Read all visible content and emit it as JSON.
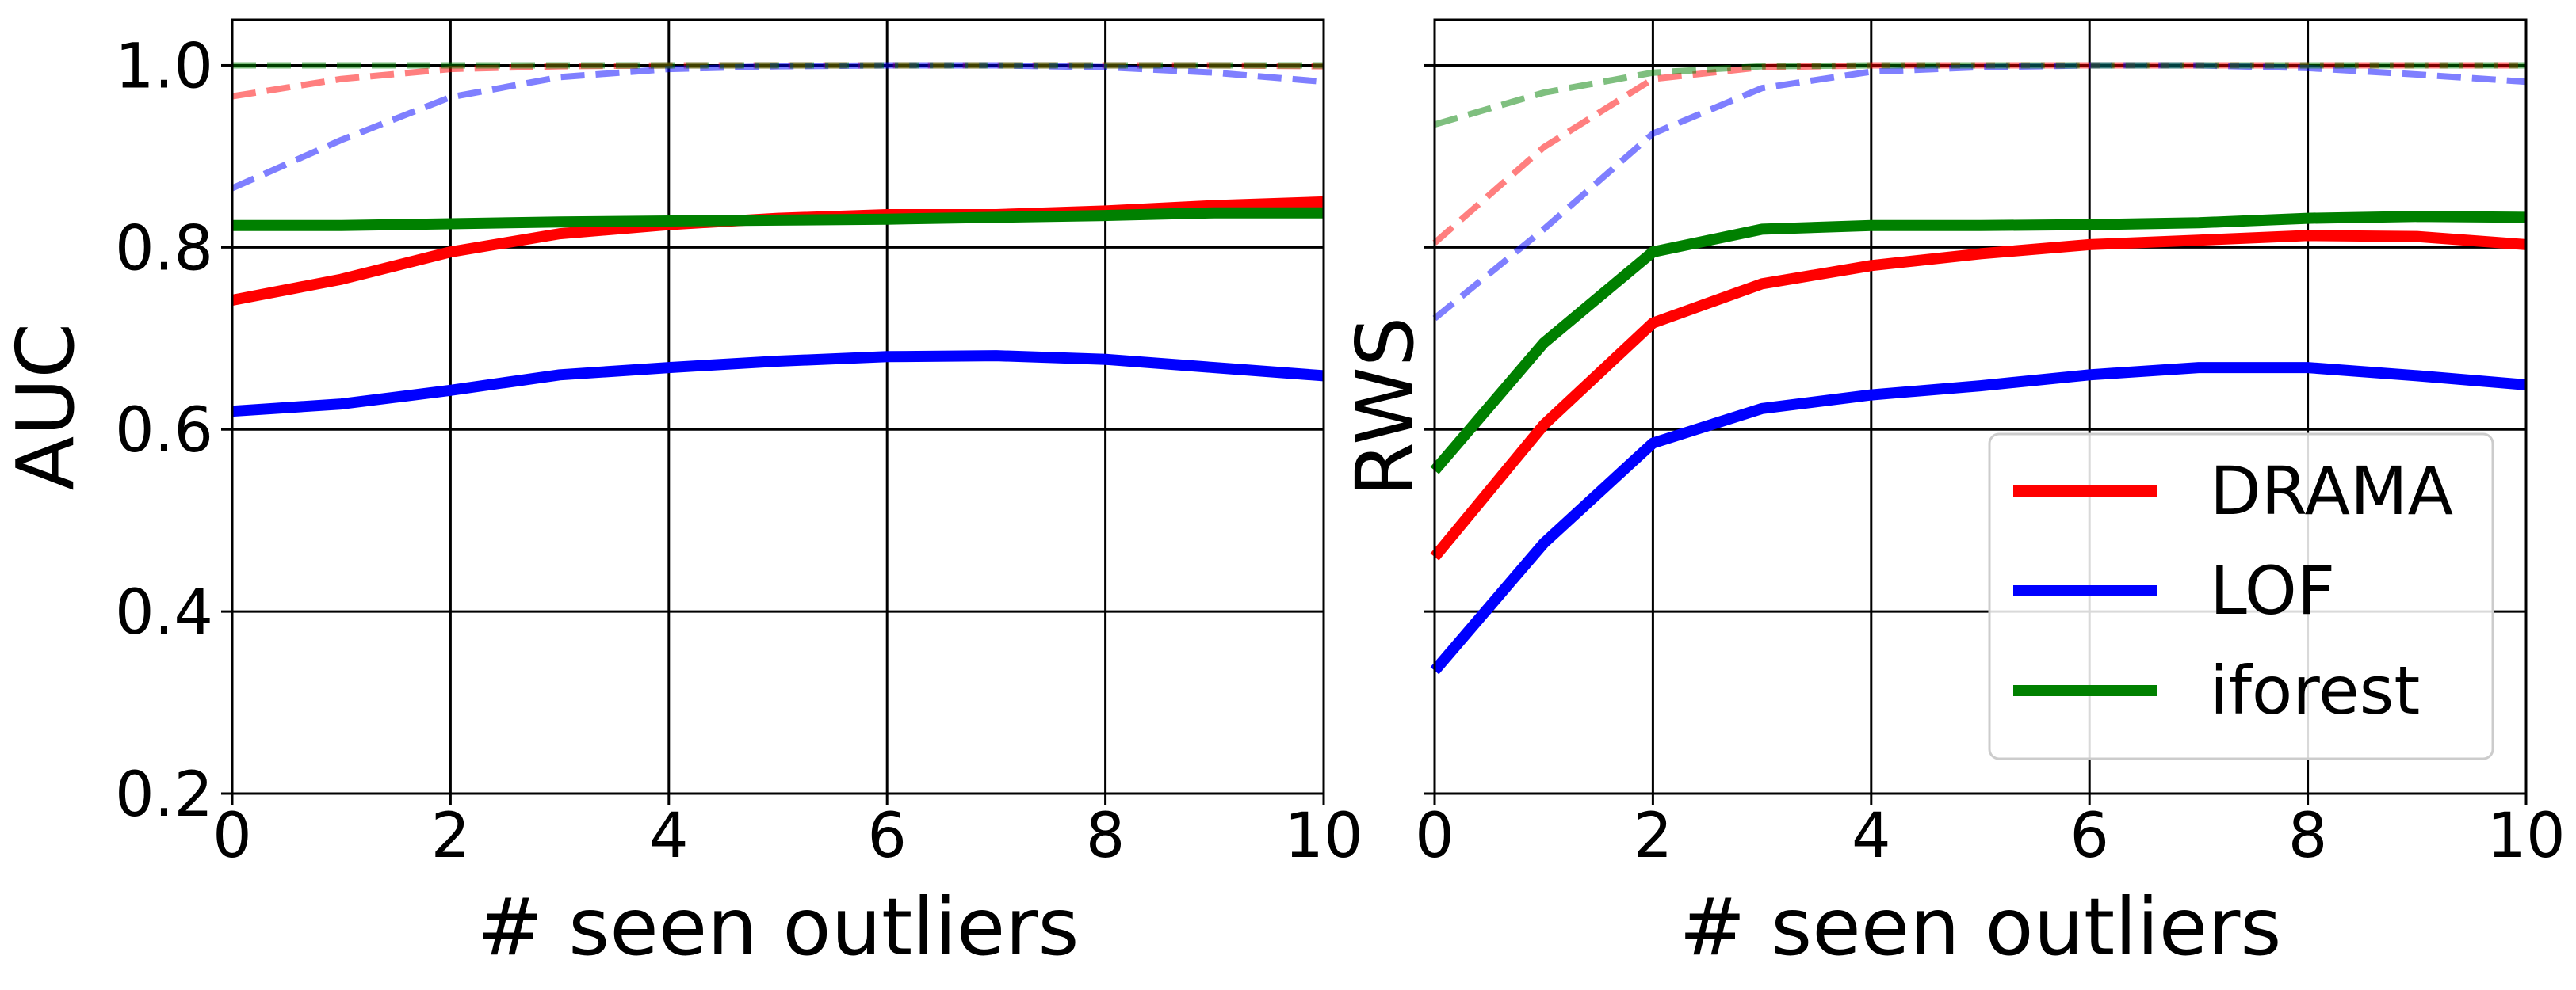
{
  "chart_data": [
    {
      "type": "line",
      "title": "",
      "xlabel": "# seen outliers",
      "ylabel": "AUC",
      "xlim": [
        0,
        10
      ],
      "ylim": [
        0.2,
        1.05
      ],
      "xticks": [
        0,
        2,
        4,
        6,
        8,
        10
      ],
      "yticks": [
        0.2,
        0.4,
        0.6,
        0.8,
        1.0
      ],
      "ytick_labels": [
        "0.2",
        "0.4",
        "0.6",
        "0.8",
        "1.0"
      ],
      "show_yticks": true,
      "grid": true,
      "x": [
        0,
        1,
        2,
        3,
        4,
        5,
        6,
        7,
        8,
        9,
        10
      ],
      "reference_line": 1.0,
      "series": [
        {
          "name": "DRAMA",
          "color": "#ff0000",
          "style": "solid",
          "values": [
            0.742,
            0.765,
            0.795,
            0.815,
            0.825,
            0.832,
            0.836,
            0.836,
            0.84,
            0.846,
            0.85
          ]
        },
        {
          "name": "LOF",
          "color": "#0000ff",
          "style": "solid",
          "values": [
            0.62,
            0.628,
            0.643,
            0.66,
            0.668,
            0.675,
            0.68,
            0.681,
            0.677,
            0.668,
            0.659
          ]
        },
        {
          "name": "iforest",
          "color": "#008000",
          "style": "solid",
          "values": [
            0.824,
            0.824,
            0.826,
            0.828,
            0.829,
            0.83,
            0.831,
            0.833,
            0.835,
            0.838,
            0.838
          ]
        },
        {
          "name": "DRAMA",
          "color": "#ff0000",
          "style": "dashed",
          "values": [
            0.966,
            0.985,
            0.996,
            0.999,
            1.0,
            1.0,
            1.0,
            1.0,
            1.0,
            1.0,
            0.999
          ]
        },
        {
          "name": "LOF",
          "color": "#0000ff",
          "style": "dashed",
          "values": [
            0.865,
            0.918,
            0.965,
            0.987,
            0.996,
            0.999,
            1.0,
            1.0,
            0.998,
            0.992,
            0.982
          ]
        },
        {
          "name": "iforest",
          "color": "#008000",
          "style": "dashed",
          "values": [
            1.0,
            1.0,
            1.0,
            1.0,
            1.0,
            1.0,
            1.0,
            1.0,
            1.0,
            1.0,
            1.0
          ]
        }
      ]
    },
    {
      "type": "line",
      "title": "",
      "xlabel": "# seen outliers",
      "ylabel": "RWS",
      "xlim": [
        0,
        10
      ],
      "ylim": [
        0.2,
        1.05
      ],
      "xticks": [
        0,
        2,
        4,
        6,
        8,
        10
      ],
      "yticks": [
        0.2,
        0.4,
        0.6,
        0.8,
        1.0
      ],
      "show_yticks": false,
      "grid": true,
      "x": [
        0,
        1,
        2,
        3,
        4,
        5,
        6,
        7,
        8,
        9,
        10
      ],
      "reference_line": 1.0,
      "legend": {
        "placement": "lower-right",
        "entries": [
          "DRAMA",
          "LOF",
          "iforest"
        ]
      },
      "series": [
        {
          "name": "DRAMA",
          "color": "#ff0000",
          "style": "solid",
          "values": [
            0.46,
            0.605,
            0.717,
            0.76,
            0.78,
            0.793,
            0.803,
            0.808,
            0.813,
            0.812,
            0.803
          ]
        },
        {
          "name": "LOF",
          "color": "#0000ff",
          "style": "solid",
          "values": [
            0.335,
            0.475,
            0.585,
            0.623,
            0.638,
            0.648,
            0.66,
            0.668,
            0.668,
            0.659,
            0.649
          ]
        },
        {
          "name": "iforest",
          "color": "#008000",
          "style": "solid",
          "values": [
            0.555,
            0.695,
            0.795,
            0.82,
            0.824,
            0.824,
            0.825,
            0.827,
            0.832,
            0.834,
            0.833
          ]
        },
        {
          "name": "DRAMA",
          "color": "#ff0000",
          "style": "dashed",
          "values": [
            0.805,
            0.91,
            0.985,
            0.998,
            1.0,
            1.0,
            1.0,
            1.0,
            1.0,
            1.0,
            1.0
          ]
        },
        {
          "name": "LOF",
          "color": "#0000ff",
          "style": "dashed",
          "values": [
            0.722,
            0.82,
            0.925,
            0.975,
            0.993,
            0.998,
            1.0,
            1.0,
            0.997,
            0.99,
            0.982
          ]
        },
        {
          "name": "iforest",
          "color": "#008000",
          "style": "dashed",
          "values": [
            0.935,
            0.97,
            0.992,
            0.999,
            1.0,
            1.0,
            1.0,
            1.0,
            1.0,
            1.0,
            1.0
          ]
        }
      ]
    }
  ]
}
